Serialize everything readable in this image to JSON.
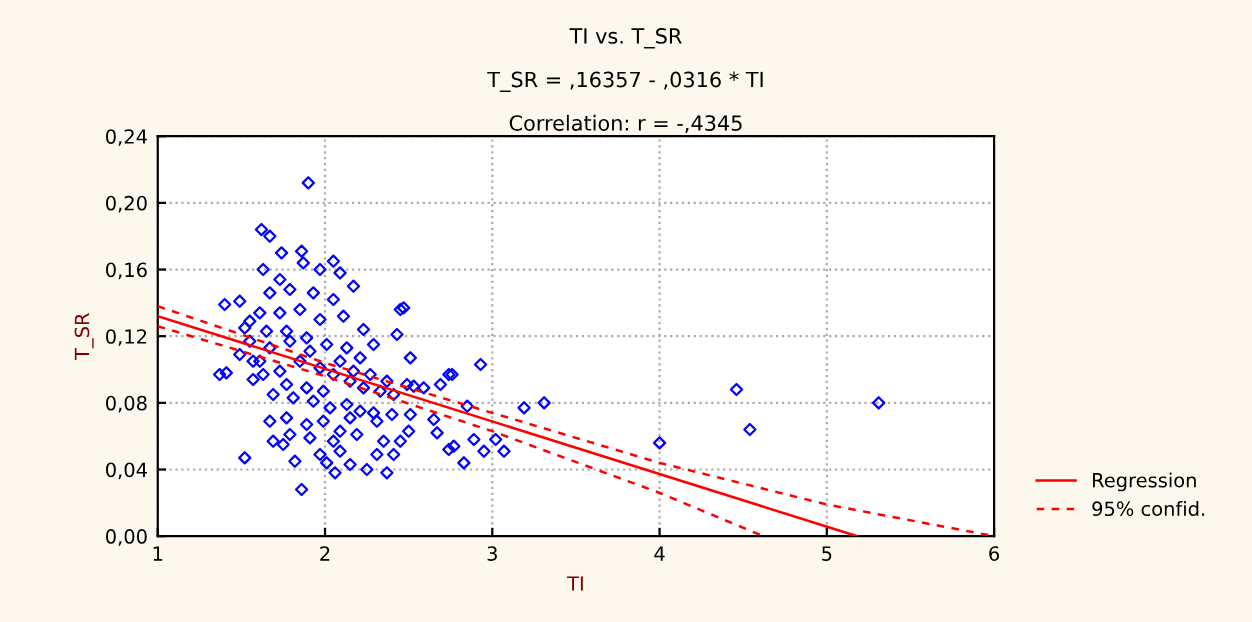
{
  "chart_data": {
    "type": "scatter",
    "title": "TI vs. T_SR",
    "subtitle": "T_SR = ,16357 - ,0316 * TI",
    "annotations": [
      "Correlation: r = -,4345"
    ],
    "xlabel": "TI",
    "ylabel": "T_SR",
    "xlim": [
      1,
      6
    ],
    "xticks": [
      1,
      2,
      3,
      4,
      5,
      6
    ],
    "ylim": [
      0,
      0.24
    ],
    "yticks": [
      {
        "value": 0,
        "label": "0,00"
      },
      {
        "value": 0.04,
        "label": "0,04"
      },
      {
        "value": 0.08,
        "label": "0,08"
      },
      {
        "value": 0.12,
        "label": "0,12"
      },
      {
        "value": 0.16,
        "label": "0,16"
      },
      {
        "value": 0.2,
        "label": "0,20"
      },
      {
        "value": 0.24,
        "label": "0,24"
      }
    ],
    "grid": true,
    "legend": "right",
    "series": [
      {
        "marker": "diamond",
        "color": "#0000ff",
        "x": [
          1.9,
          1.62,
          1.67,
          1.74,
          1.86,
          2.05,
          1.87,
          1.63,
          1.4,
          1.49,
          1.52,
          1.41,
          1.37,
          1.57,
          1.52,
          1.82,
          1.86,
          2.06,
          2.01,
          1.97,
          2.09,
          2.15,
          2.25,
          2.37,
          2.31,
          2.41,
          2.35,
          2.45,
          2.5,
          2.51,
          2.4,
          2.29,
          2.53,
          2.59,
          2.65,
          2.67,
          2.77,
          2.83,
          2.95,
          2.93,
          2.85,
          2.76,
          2.69,
          2.43,
          2.51,
          2.45,
          2.23,
          2.17,
          2.09,
          1.97,
          1.73,
          1.67,
          1.79,
          1.93,
          2.05,
          1.61,
          1.73,
          1.85,
          1.97,
          2.11,
          1.55,
          1.67,
          1.79,
          1.91,
          2.13,
          2.21,
          2.29,
          1.61,
          1.73,
          1.85,
          1.97,
          2.05,
          2.15,
          2.23,
          2.33,
          2.41,
          1.69,
          1.81,
          1.93,
          2.03,
          2.13,
          2.21,
          1.67,
          1.77,
          1.89,
          1.99,
          2.09,
          2.19,
          1.69,
          1.79,
          1.91,
          2.05,
          1.75,
          1.57,
          1.49,
          1.55,
          1.77,
          1.89,
          2.01,
          2.09,
          2.17,
          2.27,
          2.37,
          2.49,
          1.65,
          1.63,
          1.77,
          1.89,
          1.99,
          2.31,
          2.15,
          4.46,
          5.31,
          4.54,
          4.0,
          3.31,
          3.19,
          3.07,
          3.02,
          2.74,
          2.89,
          2.74,
          2.47
        ],
        "values": [
          0.212,
          0.184,
          0.18,
          0.17,
          0.171,
          0.165,
          0.164,
          0.16,
          0.139,
          0.141,
          0.125,
          0.098,
          0.097,
          0.094,
          0.047,
          0.045,
          0.028,
          0.038,
          0.044,
          0.049,
          0.051,
          0.043,
          0.04,
          0.038,
          0.049,
          0.049,
          0.057,
          0.057,
          0.063,
          0.073,
          0.073,
          0.074,
          0.09,
          0.089,
          0.07,
          0.062,
          0.054,
          0.044,
          0.051,
          0.103,
          0.078,
          0.097,
          0.091,
          0.121,
          0.107,
          0.136,
          0.124,
          0.15,
          0.158,
          0.16,
          0.154,
          0.146,
          0.148,
          0.146,
          0.142,
          0.134,
          0.134,
          0.136,
          0.13,
          0.132,
          0.117,
          0.113,
          0.117,
          0.111,
          0.113,
          0.107,
          0.115,
          0.105,
          0.099,
          0.105,
          0.101,
          0.097,
          0.093,
          0.089,
          0.087,
          0.085,
          0.085,
          0.083,
          0.081,
          0.077,
          0.079,
          0.075,
          0.069,
          0.071,
          0.067,
          0.069,
          0.063,
          0.061,
          0.057,
          0.061,
          0.059,
          0.057,
          0.055,
          0.105,
          0.109,
          0.129,
          0.123,
          0.119,
          0.115,
          0.105,
          0.099,
          0.097,
          0.093,
          0.091,
          0.123,
          0.097,
          0.091,
          0.089,
          0.087,
          0.069,
          0.071,
          0.088,
          0.08,
          0.064,
          0.056,
          0.08,
          0.077,
          0.051,
          0.058,
          0.052,
          0.058,
          0.097,
          0.137
        ]
      },
      {
        "type": "line",
        "name": "Regression",
        "color": "#ff0000",
        "line_style": "solid",
        "x": [
          1,
          5.18
        ],
        "values": [
          0.132,
          0.0
        ]
      },
      {
        "type": "line",
        "name": "95% confid.",
        "color": "#ff0000",
        "line_style": "dashed",
        "x": [
          1,
          2,
          3,
          4,
          5,
          6
        ],
        "values": [
          0.138,
          0.104,
          0.074,
          0.044,
          0.019,
          0.0
        ]
      },
      {
        "type": "line",
        "color": "#ff0000",
        "line_style": "dashed",
        "x": [
          1,
          2,
          3,
          4,
          4.62
        ],
        "values": [
          0.126,
          0.096,
          0.063,
          0.026,
          0.0
        ]
      }
    ]
  }
}
